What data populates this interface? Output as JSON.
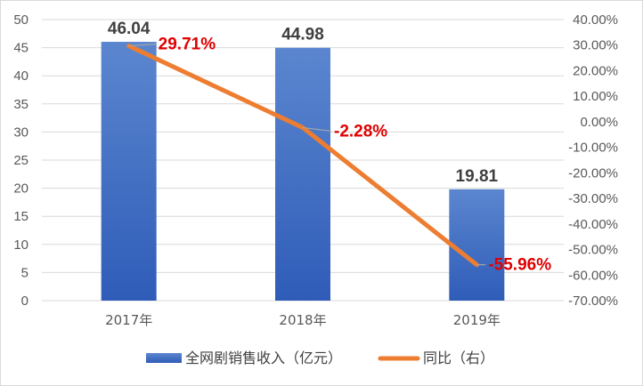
{
  "chart_data": {
    "type": "bar",
    "categories": [
      "2017年",
      "2018年",
      "2019年"
    ],
    "series": [
      {
        "name": "全网剧销售收入（亿元）",
        "type": "bar",
        "axis": "left",
        "values": [
          46.04,
          44.98,
          19.81
        ],
        "labels": [
          "46.04",
          "44.98",
          "19.81"
        ],
        "color": "#4472c4"
      },
      {
        "name": "同比（右）",
        "type": "line",
        "axis": "right",
        "values": [
          29.71,
          -2.28,
          -55.96
        ],
        "labels": [
          "29.71%",
          "-2.28%",
          "-55.96%"
        ],
        "color": "#ed7d31"
      }
    ],
    "y_left": {
      "min": 0,
      "max": 50,
      "ticks": [
        "0",
        "5",
        "10",
        "15",
        "20",
        "25",
        "30",
        "35",
        "40",
        "45",
        "50"
      ]
    },
    "y_right": {
      "min": -70,
      "max": 40,
      "ticks": [
        "-70.00%",
        "-60.00%",
        "-50.00%",
        "-40.00%",
        "-30.00%",
        "-20.00%",
        "-10.00%",
        "0.00%",
        "10.00%",
        "20.00%",
        "30.00%",
        "40.00%"
      ]
    },
    "grid": true,
    "legend": "bottom",
    "data_label_color": "#e00000"
  }
}
